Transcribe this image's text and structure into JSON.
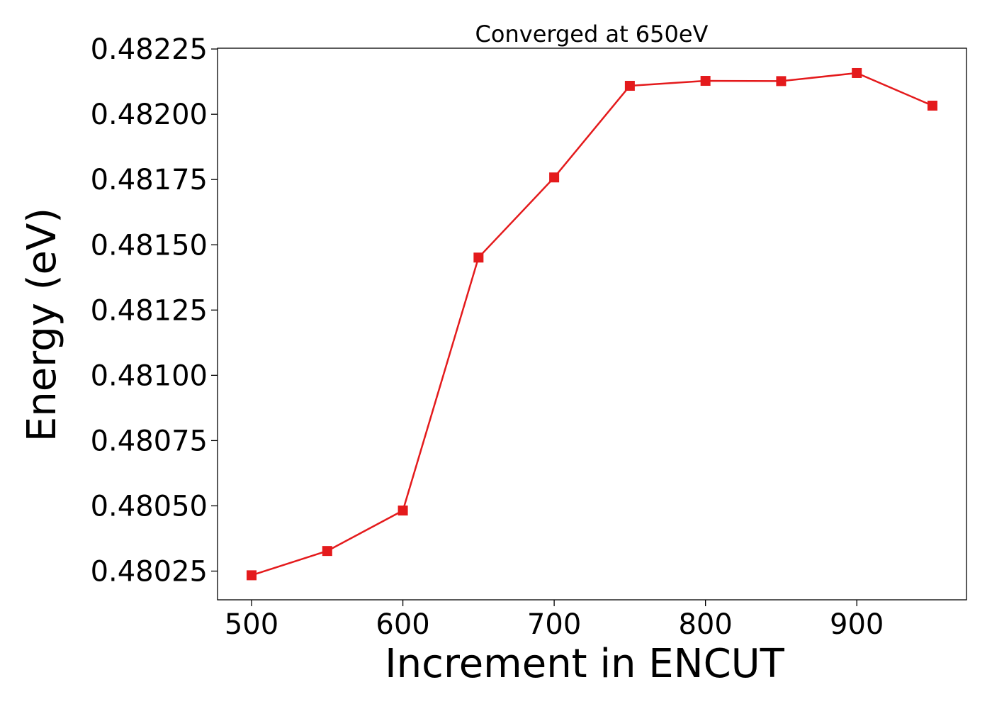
{
  "chart_data": {
    "type": "line",
    "title": "Converged at 650eV",
    "xlabel": "Increment in ENCUT",
    "ylabel": "Energy (eV)",
    "x": [
      500,
      550,
      600,
      650,
      700,
      750,
      800,
      850,
      900,
      950
    ],
    "series": [
      {
        "values": [
          0.480234,
          0.480327,
          0.480482,
          0.481451,
          0.481758,
          0.482109,
          0.482128,
          0.482127,
          0.482158,
          0.482033
        ],
        "color": "#e41a1c",
        "marker": "square"
      }
    ],
    "xlim": [
      477.5,
      972.5
    ],
    "ylim": [
      0.48014,
      0.482253
    ],
    "xticks": [
      500,
      600,
      700,
      800,
      900
    ],
    "xtick_labels": [
      "500",
      "600",
      "700",
      "800",
      "900"
    ],
    "yticks": [
      0.48025,
      0.4805,
      0.48075,
      0.481,
      0.48125,
      0.4815,
      0.48175,
      0.482,
      0.48225
    ],
    "ytick_labels": [
      "0.48025",
      "0.48050",
      "0.48075",
      "0.48100",
      "0.48125",
      "0.48150",
      "0.48175",
      "0.48200",
      "0.48225"
    ],
    "grid": false,
    "legend": "none"
  }
}
